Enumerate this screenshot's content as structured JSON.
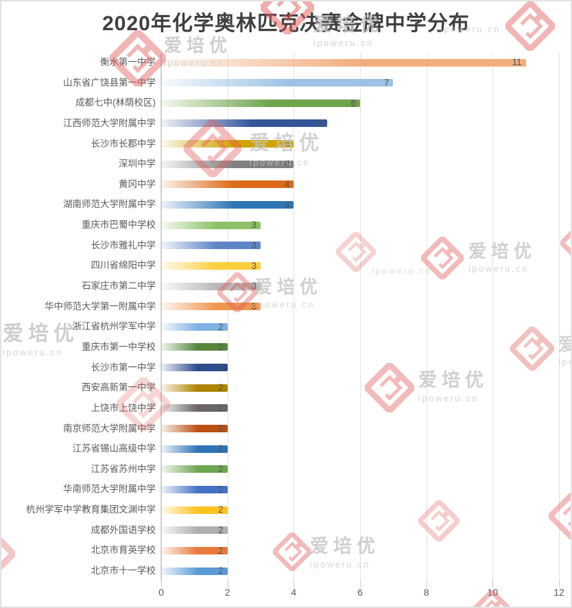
{
  "title": {
    "text": "2020年化学奥林匹克决赛金牌中学分布"
  },
  "watermark": {
    "brand": "爱培优",
    "domain": "ipoweru.cn",
    "diamond_color": "#e25c5c",
    "text_color": "#c3c3c3"
  },
  "chart_data": {
    "type": "bar",
    "orientation": "horizontal",
    "title": "2020年化学奥林匹克决赛金牌中学分布",
    "categories": [
      "衡水第一中学",
      "山东省广饶县第一中学",
      "成都七中(林荫校区)",
      "江西师范大学附属中学",
      "长沙市长郡中学",
      "深圳中学",
      "黄冈中学",
      "湖南师范大学附属中学",
      "重庆市巴蜀中学校",
      "长沙市雅礼中学",
      "四川省绵阳中学",
      "石家庄市第二中学",
      "华中师范大学第一附属中学",
      "浙江省杭州学军中学",
      "重庆市第一中学校",
      "长沙市第一中学",
      "西安高新第一中学",
      "上饶市上饶中学",
      "南京师范大学附属中学",
      "江苏省锡山高级中学",
      "江苏省苏州中学",
      "华南师范大学附属中学",
      "杭州学军中学教育集团文渊中学",
      "成都外国语学校",
      "北京市育英学校",
      "北京市十一学校"
    ],
    "values": [
      11,
      7,
      6,
      5,
      4,
      4,
      4,
      4,
      3,
      3,
      3,
      3,
      3,
      2,
      2,
      2,
      2,
      2,
      2,
      2,
      2,
      2,
      2,
      2,
      2,
      2
    ],
    "bar_colors": [
      "#F2AD7D",
      "#9CC2E5",
      "#6FA44C",
      "#33569B",
      "#D0A300",
      "#7F7F7F",
      "#DC6A18",
      "#2E75B6",
      "#8CC168",
      "#5F85C7",
      "#FBCE3E",
      "#B9B9B9",
      "#F0964F",
      "#7EB1E4",
      "#57863A",
      "#2D4A8C",
      "#AD8400",
      "#6B6565",
      "#BC4F14",
      "#2E74B5",
      "#6EA64F",
      "#4472C4",
      "#FEC321",
      "#AFAFAF",
      "#E87A3D",
      "#5B9BD5"
    ],
    "xlabel": "",
    "ylabel": "",
    "xlim": [
      0,
      12
    ],
    "x_ticks": [
      0,
      2,
      4,
      6,
      8,
      10,
      12
    ],
    "x_tick_labels": [
      "0",
      "2",
      "4",
      "6",
      "8",
      "10",
      "12"
    ],
    "grid": true,
    "legend": "none",
    "value_label_position": "inside-right",
    "axis_text_color": "#595959",
    "gridline_color": "#e3e3e3",
    "title_color": "#3f3f3f"
  }
}
